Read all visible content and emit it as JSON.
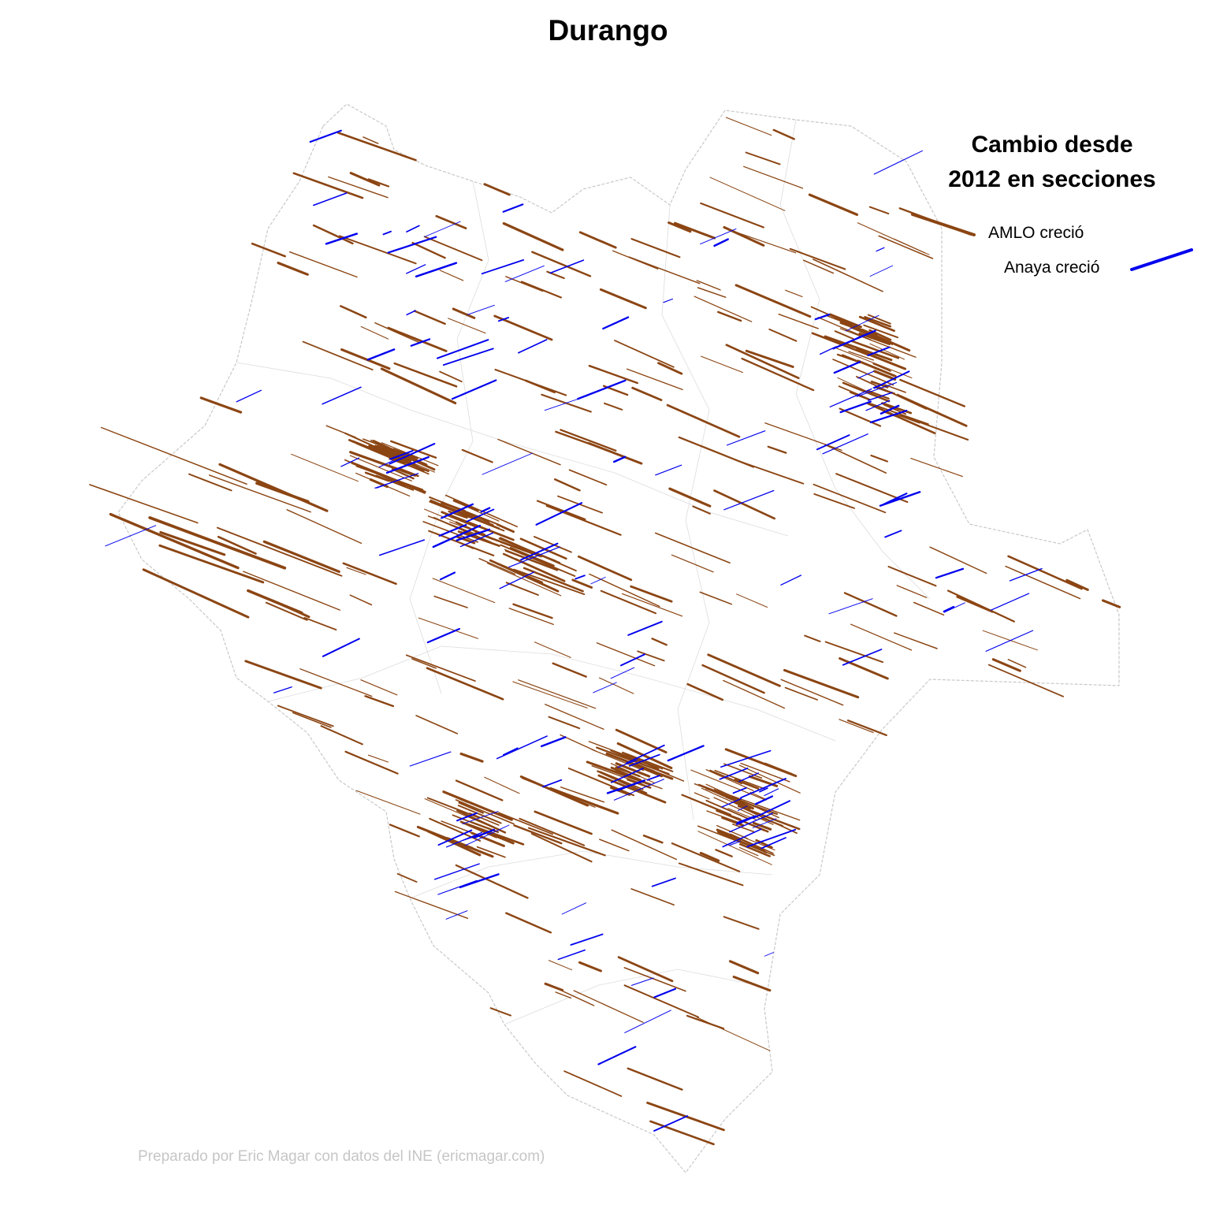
{
  "title": "Durango",
  "legend": {
    "title_line1": "Cambio desde",
    "title_line2": "2012 en secciones",
    "items": [
      {
        "label": "AMLO creció",
        "color": "#8B4513"
      },
      {
        "label": "Anaya creció",
        "color": "#0000EE"
      }
    ]
  },
  "credit": "Preparado por Eric Magar con datos del INE (ericmagar.com)",
  "colors": {
    "amlo": "#8B4513",
    "anaya": "#0000EE",
    "boundary": "#c8c8c8",
    "credit": "#c6c6c6"
  }
}
